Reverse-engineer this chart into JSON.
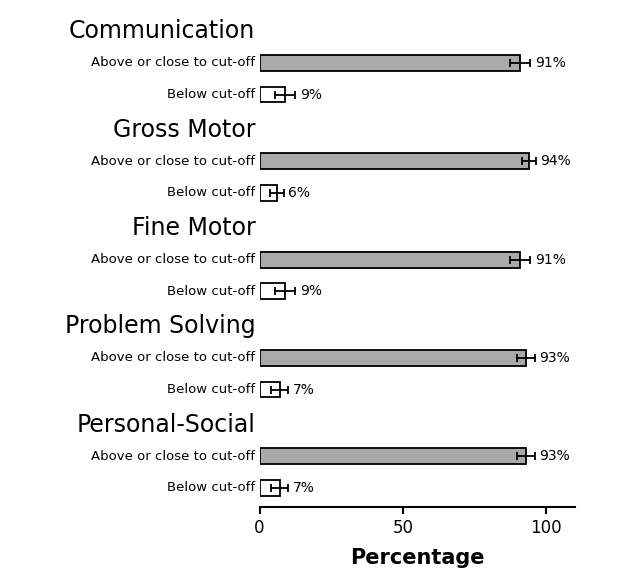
{
  "categories": [
    "Communication",
    "Gross Motor",
    "Fine Motor",
    "Problem Solving",
    "Personal-Social"
  ],
  "above_values": [
    91,
    94,
    91,
    93,
    93
  ],
  "below_values": [
    9,
    6,
    9,
    7,
    7
  ],
  "above_errors": [
    3.5,
    2.5,
    3.5,
    3.0,
    3.0
  ],
  "below_errors": [
    3.5,
    2.5,
    3.5,
    3.0,
    3.0
  ],
  "above_color": "#aaaaaa",
  "below_color": "#ffffff",
  "edgecolor": "#000000",
  "xlabel": "Percentage",
  "xlim": [
    0,
    110
  ],
  "xticks": [
    0,
    50,
    100
  ],
  "background_color": "#ffffff",
  "bar_height": 0.45,
  "category_fontsize": 17,
  "sublabel_fontsize": 9.5,
  "xlabel_fontsize": 15,
  "tick_fontsize": 12,
  "pct_fontsize": 10,
  "errorbar_capsize": 3,
  "errorbar_linewidth": 1.3,
  "figsize": [
    6.18,
    5.76
  ],
  "dpi": 100
}
